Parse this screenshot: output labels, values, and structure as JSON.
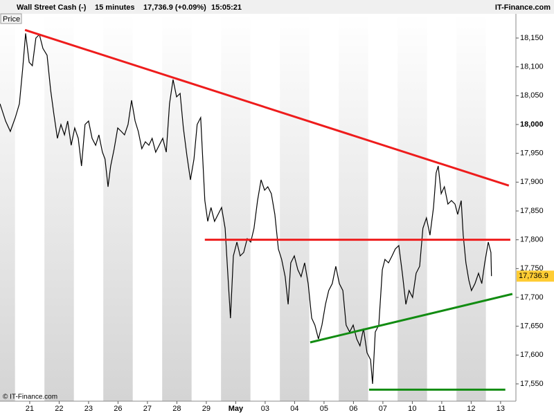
{
  "header": {
    "instrument": "Wall Street Cash (-)",
    "interval": "15 minutes",
    "quote": "17,736.9 (+0.09%)",
    "time": "15:05:21",
    "brand": "IT-Finance.com"
  },
  "panel_label": "Price",
  "copyright": "© IT-Finance.com",
  "chart_data": {
    "type": "line",
    "x": [
      -1.01,
      -0.82,
      -0.66,
      -0.49,
      -0.35,
      -0.24,
      -0.14,
      -0.02,
      0.09,
      0.21,
      0.33,
      0.45,
      0.59,
      0.71,
      0.82,
      0.94,
      1.06,
      1.18,
      1.29,
      1.41,
      1.53,
      1.65,
      1.76,
      1.88,
      2.0,
      2.12,
      2.24,
      2.35,
      2.47,
      2.56,
      2.66,
      2.75,
      2.87,
      2.99,
      3.11,
      3.22,
      3.34,
      3.46,
      3.58,
      3.69,
      3.81,
      3.93,
      4.05,
      4.16,
      4.28,
      4.4,
      4.52,
      4.64,
      4.75,
      4.87,
      4.99,
      5.11,
      5.22,
      5.34,
      5.46,
      5.58,
      5.69,
      5.81,
      5.88,
      5.95,
      6.05,
      6.16,
      6.28,
      6.4,
      6.52,
      6.64,
      6.75,
      6.82,
      6.92,
      7.04,
      7.15,
      7.27,
      7.39,
      7.51,
      7.62,
      7.74,
      7.86,
      7.98,
      8.09,
      8.21,
      8.33,
      8.45,
      8.56,
      8.68,
      8.78,
      8.87,
      8.99,
      9.11,
      9.22,
      9.34,
      9.46,
      9.58,
      9.69,
      9.81,
      9.93,
      10.05,
      10.16,
      10.28,
      10.4,
      10.52,
      10.64,
      10.75,
      10.87,
      10.99,
      11.11,
      11.22,
      11.34,
      11.46,
      11.58,
      11.65,
      11.74,
      11.86,
      11.98,
      12.07,
      12.19,
      12.31,
      12.42,
      12.54,
      12.66,
      12.78,
      12.89,
      13.01,
      13.13,
      13.25,
      13.36,
      13.48,
      13.6,
      13.72,
      13.81,
      13.88,
      13.98,
      14.09,
      14.21,
      14.33,
      14.45,
      14.54,
      14.66,
      14.73,
      14.82,
      14.92,
      15.01,
      15.13,
      15.25,
      15.36,
      15.46,
      15.58,
      15.67,
      15.69
    ],
    "series": [
      {
        "color": "#000000",
        "values": [
          18036,
          18006,
          17988,
          18012,
          18036,
          18096,
          18158,
          18108,
          18102,
          18150,
          18156,
          18132,
          18120,
          18060,
          18018,
          17976,
          18000,
          17982,
          18006,
          17964,
          17994,
          17976,
          17928,
          18000,
          18006,
          17976,
          17964,
          17982,
          17952,
          17940,
          17892,
          17928,
          17958,
          17994,
          17988,
          17982,
          18000,
          18042,
          18006,
          17988,
          17958,
          17970,
          17964,
          17976,
          17952,
          17964,
          17976,
          17952,
          18036,
          18078,
          18048,
          18054,
          17994,
          17946,
          17904,
          17940,
          18000,
          18012,
          17940,
          17868,
          17832,
          17856,
          17832,
          17844,
          17856,
          17820,
          17724,
          17664,
          17772,
          17796,
          17772,
          17778,
          17802,
          17796,
          17820,
          17868,
          17904,
          17886,
          17892,
          17880,
          17844,
          17784,
          17766,
          17736,
          17688,
          17760,
          17772,
          17748,
          17736,
          17760,
          17724,
          17664,
          17652,
          17628,
          17652,
          17688,
          17712,
          17724,
          17754,
          17724,
          17712,
          17652,
          17640,
          17652,
          17628,
          17616,
          17646,
          17604,
          17592,
          17550,
          17640,
          17652,
          17748,
          17766,
          17760,
          17772,
          17784,
          17790,
          17742,
          17688,
          17712,
          17700,
          17742,
          17754,
          17820,
          17838,
          17808,
          17856,
          17916,
          17928,
          17880,
          17892,
          17862,
          17868,
          17862,
          17844,
          17868,
          17808,
          17760,
          17730,
          17712,
          17724,
          17742,
          17724,
          17760,
          17796,
          17778,
          17736.9
        ]
      }
    ],
    "current_price": {
      "value": 17736.9,
      "label": "17,736.9",
      "color": "#ffcc33"
    },
    "trendlines": [
      {
        "color": "#ee1c1c",
        "x": [
          -0.16,
          16.28
        ],
        "values": [
          18164,
          17894
        ]
      },
      {
        "color": "#ee1c1c",
        "x": [
          5.95,
          16.33
        ],
        "values": [
          17800,
          17800
        ]
      },
      {
        "color": "#128c12",
        "x": [
          9.53,
          16.4
        ],
        "values": [
          17622,
          17706
        ]
      },
      {
        "color": "#128c12",
        "x": [
          11.53,
          16.16
        ],
        "values": [
          17540,
          17540
        ]
      }
    ],
    "xlim": [
      -1.01,
      16.52
    ],
    "ylim": [
      17520,
      18192
    ],
    "xticks": [
      {
        "value": 0,
        "label": "21"
      },
      {
        "value": 1,
        "label": "22"
      },
      {
        "value": 2,
        "label": "23"
      },
      {
        "value": 3,
        "label": "26"
      },
      {
        "value": 4,
        "label": "27"
      },
      {
        "value": 5,
        "label": "28"
      },
      {
        "value": 6,
        "label": "29"
      },
      {
        "value": 7,
        "label": "May"
      },
      {
        "value": 8,
        "label": "03"
      },
      {
        "value": 9,
        "label": "04"
      },
      {
        "value": 10,
        "label": "05"
      },
      {
        "value": 11,
        "label": "06"
      },
      {
        "value": 12,
        "label": "07"
      },
      {
        "value": 13,
        "label": "10"
      },
      {
        "value": 14,
        "label": "11"
      },
      {
        "value": 15,
        "label": "12"
      },
      {
        "value": 16,
        "label": "13"
      }
    ],
    "yticks": [
      {
        "value": 17550,
        "label": "17,550"
      },
      {
        "value": 17600,
        "label": "17,600"
      },
      {
        "value": 17650,
        "label": "17,650"
      },
      {
        "value": 17700,
        "label": "17,700"
      },
      {
        "value": 17750,
        "label": "17,750"
      },
      {
        "value": 17800,
        "label": "17,800"
      },
      {
        "value": 17850,
        "label": "17,850"
      },
      {
        "value": 17900,
        "label": "17,900"
      },
      {
        "value": 17950,
        "label": "17,950"
      },
      {
        "value": 18000,
        "label": "18,000"
      },
      {
        "value": 18050,
        "label": "18,050"
      },
      {
        "value": 18100,
        "label": "18,100"
      },
      {
        "value": 18150,
        "label": "18,150"
      }
    ],
    "bold_ytick": 18000,
    "bold_xtick": 7
  }
}
